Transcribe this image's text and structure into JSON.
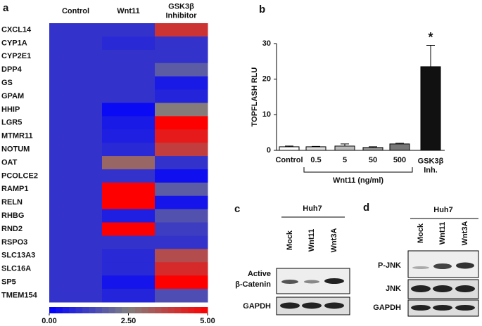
{
  "chart_data": [
    {
      "type": "heatmap",
      "panel": "a",
      "columns": [
        "Control",
        "Wnt11",
        "GSK3β Inhibitor"
      ],
      "rows": [
        "CXCL14",
        "CYP1A",
        "CYP2E1",
        "DPP4",
        "GS",
        "GPAM",
        "HHIP",
        "LGR5",
        "MTMR11",
        "NOTUM",
        "OAT",
        "PCOLCE2",
        "RAMP1",
        "RELN",
        "RHBG",
        "RND2",
        "RSPO3",
        "SLC13A3",
        "SLC16A",
        "SP5",
        "TMEM154"
      ],
      "values": [
        [
          1,
          1,
          4
        ],
        [
          1,
          0.8,
          1
        ],
        [
          1,
          1,
          1
        ],
        [
          1,
          1,
          1.8
        ],
        [
          1,
          1,
          0.5
        ],
        [
          1,
          1,
          0.7
        ],
        [
          1,
          0.2,
          2.6
        ],
        [
          1,
          0.5,
          5
        ],
        [
          1,
          0.6,
          4.5
        ],
        [
          1,
          0.8,
          3.8
        ],
        [
          1,
          3,
          1
        ],
        [
          1,
          1,
          0.3
        ],
        [
          1,
          5,
          1.8
        ],
        [
          1,
          5,
          0.4
        ],
        [
          1,
          0.6,
          1.6
        ],
        [
          1,
          5,
          1.2
        ],
        [
          1,
          1,
          1
        ],
        [
          1,
          0.8,
          3.5
        ],
        [
          1,
          0.8,
          4.2
        ],
        [
          1,
          0.4,
          5
        ],
        [
          1,
          0.7,
          1.5
        ]
      ],
      "clim": [
        0,
        5
      ],
      "colors": [
        "#0000ff",
        "#808080",
        "#ff0000"
      ],
      "cticks": [
        {
          "value": 0,
          "label": "0.00"
        },
        {
          "value": 2.5,
          "label": "2.50"
        },
        {
          "value": 5,
          "label": "5.00"
        }
      ]
    },
    {
      "type": "bar",
      "panel": "b",
      "ylabel": "TOPFLASH RLU",
      "categories": [
        "Control",
        "0.5",
        "5",
        "50",
        "500",
        "GSK3β Inh."
      ],
      "values": [
        1,
        1,
        1.2,
        0.8,
        1.8,
        23.5
      ],
      "errors": [
        0.2,
        0.1,
        0.6,
        0.2,
        0.2,
        6
      ],
      "colors": [
        "#ffffff",
        "#dddddd",
        "#bbbbbb",
        "#999999",
        "#777777",
        "#111111"
      ],
      "group_label": "Wnt11 (ng/ml)",
      "annotation": "*",
      "ylim": [
        0,
        30
      ],
      "yticks": [
        0,
        10,
        20,
        30
      ]
    }
  ],
  "blots": [
    {
      "panel": "c",
      "cell_line": "Huh7",
      "lanes": [
        "Mock",
        "Wnt11",
        "Wnt3A"
      ],
      "rows": [
        [
          "Active",
          "β-Catenin"
        ],
        [
          "GAPDH"
        ]
      ]
    },
    {
      "panel": "d",
      "cell_line": "Huh7",
      "lanes": [
        "Mock",
        "Wnt11",
        "Wnt3A"
      ],
      "rows": [
        [
          "P-JNK"
        ],
        [
          "JNK"
        ],
        [
          "GAPDH"
        ]
      ]
    }
  ]
}
